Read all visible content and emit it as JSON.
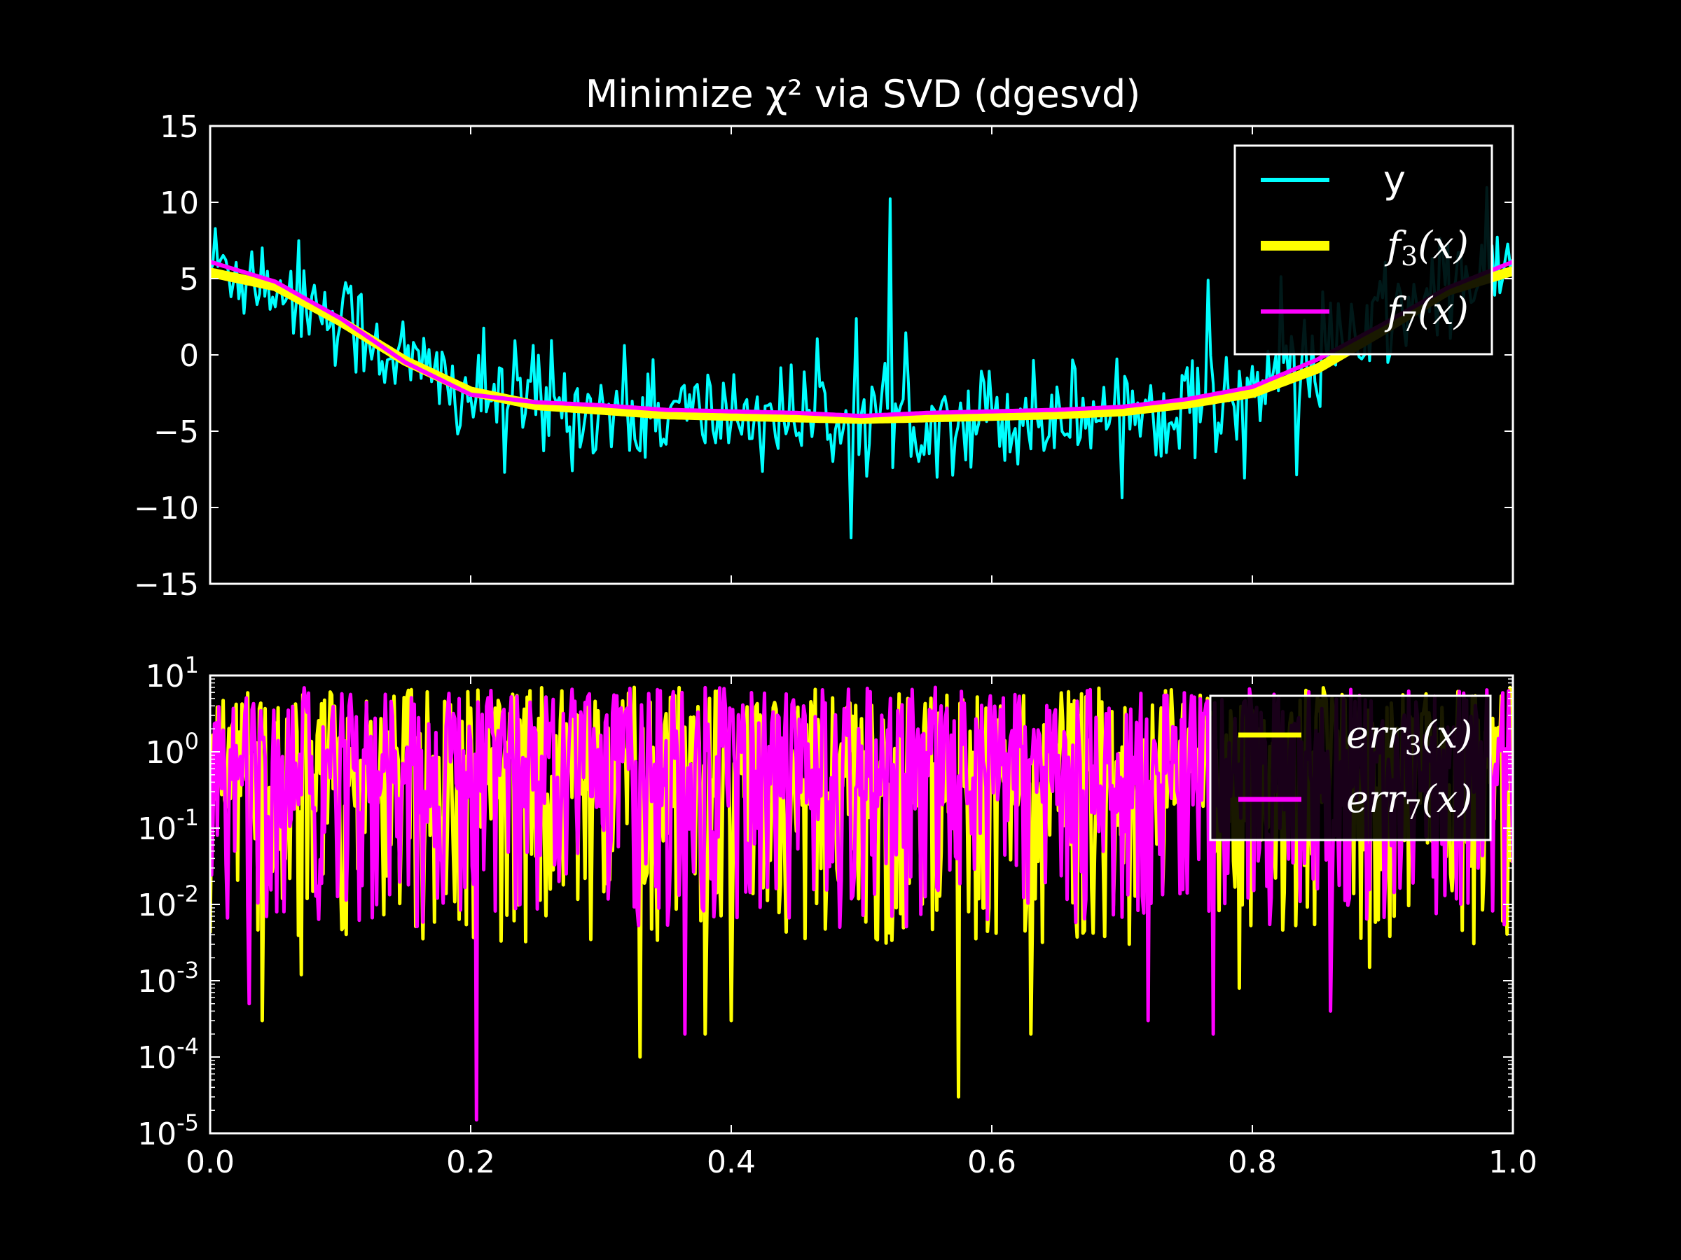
{
  "chart_data": [
    {
      "type": "line",
      "title": "Minimize χ² via SVD (dgesvd)",
      "xlim": [
        0.0,
        1.0
      ],
      "ylim": [
        -15,
        15
      ],
      "yticks": [
        "15",
        "10",
        "5",
        "0",
        "−5",
        "−10",
        "−15"
      ],
      "ytick_values": [
        15,
        10,
        5,
        0,
        -5,
        -10,
        -15
      ],
      "x_tick_values": [
        0.0,
        0.2,
        0.4,
        0.6,
        0.8,
        1.0
      ],
      "grid": false,
      "legend_position": "top-right",
      "background": "#000000",
      "series": [
        {
          "name": "y",
          "color": "#00ffff",
          "style": "noisy",
          "x": [
            0.0,
            0.05,
            0.1,
            0.15,
            0.2,
            0.25,
            0.3,
            0.35,
            0.4,
            0.45,
            0.5,
            0.55,
            0.6,
            0.65,
            0.7,
            0.75,
            0.8,
            0.85,
            0.9,
            0.95,
            1.0
          ],
          "values": [
            6.0,
            4.9,
            2.5,
            -0.5,
            -2.6,
            -3.3,
            -3.6,
            -3.9,
            -3.9,
            -4.0,
            -4.1,
            -3.9,
            -3.9,
            -3.8,
            -3.6,
            -3.1,
            -2.3,
            -0.4,
            2.0,
            4.5,
            6.0
          ]
        },
        {
          "name": "f3(x)",
          "legend_sub": "3",
          "color": "#ffff00",
          "style": "thick",
          "x": [
            0.0,
            0.05,
            0.1,
            0.15,
            0.2,
            0.25,
            0.3,
            0.35,
            0.4,
            0.45,
            0.5,
            0.55,
            0.6,
            0.65,
            0.7,
            0.75,
            0.8,
            0.85,
            0.9,
            0.95,
            1.0
          ],
          "values": [
            5.4,
            4.5,
            2.2,
            -0.4,
            -2.4,
            -3.3,
            -3.6,
            -3.9,
            -4.0,
            -4.1,
            -4.2,
            -4.1,
            -4.0,
            -3.9,
            -3.7,
            -3.2,
            -2.5,
            -0.9,
            1.6,
            4.2,
            5.5
          ]
        },
        {
          "name": "f7(x)",
          "legend_sub": "7",
          "color": "#ff00ff",
          "style": "thin",
          "x": [
            0.0,
            0.05,
            0.1,
            0.15,
            0.2,
            0.25,
            0.3,
            0.35,
            0.4,
            0.45,
            0.5,
            0.55,
            0.6,
            0.65,
            0.7,
            0.75,
            0.8,
            0.85,
            0.9,
            0.95,
            1.0
          ],
          "values": [
            6.1,
            4.8,
            2.4,
            -0.5,
            -2.6,
            -3.1,
            -3.3,
            -3.6,
            -3.7,
            -3.8,
            -4.0,
            -3.8,
            -3.7,
            -3.6,
            -3.4,
            -2.9,
            -2.1,
            -0.3,
            2.0,
            4.4,
            6.1
          ]
        }
      ]
    },
    {
      "type": "line",
      "yscale": "log",
      "xlim": [
        0.0,
        1.0
      ],
      "ylim": [
        1e-05,
        10
      ],
      "xticks": [
        "0.0",
        "0.2",
        "0.4",
        "0.6",
        "0.8",
        "1.0"
      ],
      "x_tick_values": [
        0.0,
        0.2,
        0.4,
        0.6,
        0.8,
        1.0
      ],
      "yticks": [
        {
          "base": "10",
          "exp": "1",
          "value": 10
        },
        {
          "base": "10",
          "exp": "0",
          "value": 1
        },
        {
          "base": "10",
          "exp": "-1",
          "value": 0.1
        },
        {
          "base": "10",
          "exp": "-2",
          "value": 0.01
        },
        {
          "base": "10",
          "exp": "-3",
          "value": 0.001
        },
        {
          "base": "10",
          "exp": "-4",
          "value": 0.0001
        },
        {
          "base": "10",
          "exp": "-5",
          "value": 1e-05
        }
      ],
      "grid": false,
      "legend_position": "top-right",
      "series": [
        {
          "name": "err3(x)",
          "legend_sub": "3",
          "color": "#ffff00",
          "typical_range": [
            0.003,
            7
          ],
          "dips": [
            [
              0.04,
              0.0003
            ],
            [
              0.07,
              0.0012
            ],
            [
              0.33,
              0.0001
            ],
            [
              0.38,
              0.0002
            ],
            [
              0.4,
              0.0003
            ],
            [
              0.575,
              3e-05
            ],
            [
              0.63,
              0.0002
            ],
            [
              0.79,
              0.0008
            ],
            [
              0.89,
              0.0015
            ]
          ]
        },
        {
          "name": "err7(x)",
          "legend_sub": "7",
          "color": "#ff00ff",
          "typical_range": [
            0.005,
            7
          ],
          "dips": [
            [
              0.03,
              0.0005
            ],
            [
              0.205,
              1.5e-05
            ],
            [
              0.365,
              0.0002
            ],
            [
              0.72,
              0.0003
            ],
            [
              0.77,
              0.0002
            ],
            [
              0.86,
              0.0004
            ]
          ]
        }
      ]
    }
  ]
}
